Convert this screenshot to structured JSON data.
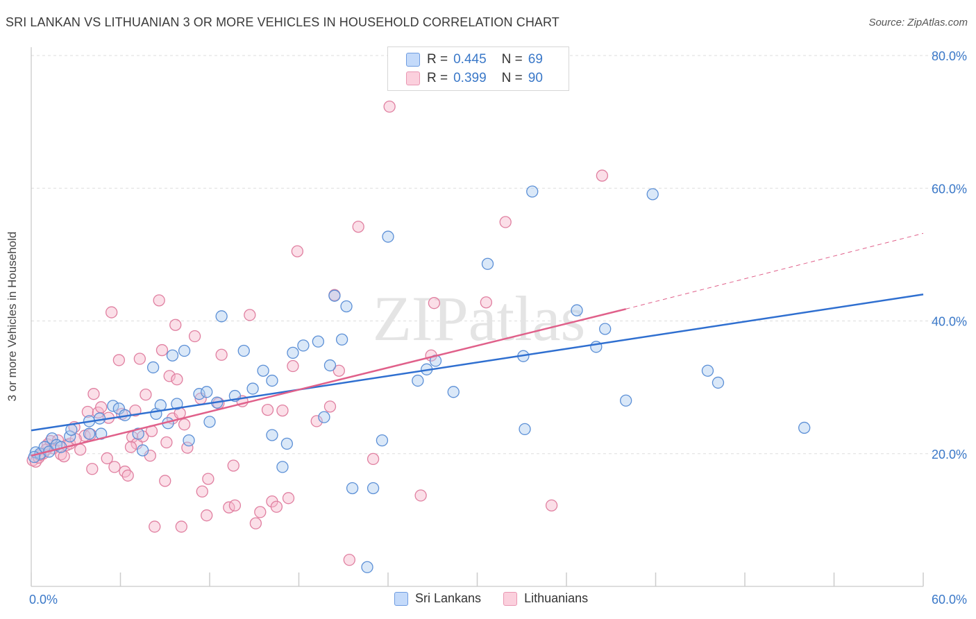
{
  "title": "SRI LANKAN VS LITHUANIAN 3 OR MORE VEHICLES IN HOUSEHOLD CORRELATION CHART",
  "source": "Source: ZipAtlas.com",
  "watermark": "ZIPatlas",
  "legend_top": {
    "rows": [
      {
        "r_label": "R =",
        "r_value": "0.445",
        "n_label": "N =",
        "n_value": "69"
      },
      {
        "r_label": "R =",
        "r_value": "0.399",
        "n_label": "N =",
        "n_value": "90"
      }
    ]
  },
  "legend_bottom": [
    "Sri Lankans",
    "Lithuanians"
  ],
  "colors": {
    "blue_fill": "#aecbf0",
    "blue_stroke": "#5b8fd6",
    "blue_line": "#2f6fd0",
    "pink_fill": "#f6b8cb",
    "pink_stroke": "#e07fa0",
    "pink_line": "#e0608a",
    "axis_label": "#3a78c8",
    "grid": "#dddddd"
  },
  "chart_data": {
    "type": "scatter",
    "title": "SRI LANKAN VS LITHUANIAN 3 OR MORE VEHICLES IN HOUSEHOLD CORRELATION CHART",
    "xlabel": "",
    "ylabel": "3 or more Vehicles in Household",
    "xlim": [
      0,
      60
    ],
    "ylim": [
      0,
      80
    ],
    "x_tick_labels": [
      "0.0%",
      "60.0%"
    ],
    "y_ticks": [
      20,
      40,
      60,
      80
    ],
    "y_tick_labels": [
      "20.0%",
      "40.0%",
      "60.0%",
      "80.0%"
    ],
    "grid": true,
    "legend_position": "top-center",
    "series": [
      {
        "name": "Sri Lankans",
        "R": 0.445,
        "N": 69,
        "trend": {
          "x0": 0,
          "y0": 23.5,
          "x1": 60,
          "y1": 44.0,
          "dashed_extension": false
        },
        "points": [
          [
            0.3,
            20.2
          ],
          [
            0.6,
            20.0
          ],
          [
            0.9,
            21.0
          ],
          [
            1.2,
            20.3
          ],
          [
            1.4,
            22.3
          ],
          [
            1.7,
            21.3
          ],
          [
            2.0,
            21.0
          ],
          [
            2.6,
            22.6
          ],
          [
            2.7,
            23.6
          ],
          [
            3.9,
            23.0
          ],
          [
            3.9,
            24.9
          ],
          [
            4.6,
            25.3
          ],
          [
            4.7,
            23.0
          ],
          [
            5.5,
            27.2
          ],
          [
            5.9,
            26.8
          ],
          [
            6.3,
            25.8
          ],
          [
            7.2,
            23.0
          ],
          [
            7.5,
            20.5
          ],
          [
            8.2,
            33.0
          ],
          [
            8.4,
            26.0
          ],
          [
            8.7,
            27.3
          ],
          [
            9.2,
            24.6
          ],
          [
            9.5,
            34.8
          ],
          [
            9.8,
            27.5
          ],
          [
            10.3,
            35.5
          ],
          [
            10.6,
            22.0
          ],
          [
            11.3,
            29.0
          ],
          [
            11.8,
            29.3
          ],
          [
            12.0,
            24.8
          ],
          [
            12.5,
            27.7
          ],
          [
            12.8,
            40.7
          ],
          [
            13.7,
            28.7
          ],
          [
            14.3,
            35.5
          ],
          [
            14.9,
            29.8
          ],
          [
            15.6,
            32.5
          ],
          [
            16.2,
            31.0
          ],
          [
            16.2,
            22.8
          ],
          [
            16.9,
            18.0
          ],
          [
            17.2,
            21.5
          ],
          [
            17.6,
            35.2
          ],
          [
            18.3,
            36.3
          ],
          [
            19.3,
            36.9
          ],
          [
            19.7,
            25.5
          ],
          [
            20.1,
            33.3
          ],
          [
            20.4,
            43.8
          ],
          [
            20.9,
            37.2
          ],
          [
            21.2,
            42.2
          ],
          [
            21.6,
            14.8
          ],
          [
            22.6,
            2.9
          ],
          [
            23.0,
            14.8
          ],
          [
            23.6,
            22.0
          ],
          [
            24.0,
            52.7
          ],
          [
            26.0,
            31.0
          ],
          [
            26.6,
            32.7
          ],
          [
            27.2,
            34.0
          ],
          [
            28.4,
            29.3
          ],
          [
            30.7,
            48.6
          ],
          [
            33.1,
            34.7
          ],
          [
            33.2,
            23.7
          ],
          [
            33.7,
            59.5
          ],
          [
            36.7,
            41.6
          ],
          [
            38.0,
            36.1
          ],
          [
            38.6,
            38.8
          ],
          [
            40.0,
            28.0
          ],
          [
            41.8,
            59.1
          ],
          [
            45.5,
            32.5
          ],
          [
            46.2,
            30.7
          ],
          [
            52.0,
            23.9
          ],
          [
            0.2,
            19.5
          ]
        ]
      },
      {
        "name": "Lithuanians",
        "R": 0.399,
        "N": 90,
        "trend": {
          "x0": 0,
          "y0": 19.7,
          "x1": 40.0,
          "y1": 41.8,
          "dashed_extension_to": [
            60,
            53.2
          ]
        },
        "points": [
          [
            0.1,
            19.0
          ],
          [
            0.3,
            18.8
          ],
          [
            0.5,
            19.4
          ],
          [
            0.8,
            20.0
          ],
          [
            1.1,
            21.4
          ],
          [
            1.3,
            21.9
          ],
          [
            1.5,
            20.8
          ],
          [
            1.8,
            22.0
          ],
          [
            2.0,
            19.9
          ],
          [
            2.2,
            19.6
          ],
          [
            2.4,
            21.3
          ],
          [
            2.9,
            24.0
          ],
          [
            3.3,
            20.6
          ],
          [
            3.6,
            22.7
          ],
          [
            3.8,
            26.3
          ],
          [
            4.1,
            17.7
          ],
          [
            4.2,
            29.0
          ],
          [
            4.5,
            26.2
          ],
          [
            4.7,
            27.0
          ],
          [
            5.1,
            19.3
          ],
          [
            5.4,
            41.3
          ],
          [
            5.6,
            18.0
          ],
          [
            5.9,
            34.1
          ],
          [
            6.1,
            26.0
          ],
          [
            6.3,
            17.3
          ],
          [
            6.5,
            16.7
          ],
          [
            6.8,
            22.5
          ],
          [
            7.0,
            26.5
          ],
          [
            7.1,
            21.5
          ],
          [
            7.3,
            34.3
          ],
          [
            7.5,
            22.6
          ],
          [
            7.7,
            28.9
          ],
          [
            8.0,
            19.7
          ],
          [
            8.3,
            9.0
          ],
          [
            8.6,
            43.1
          ],
          [
            8.8,
            35.6
          ],
          [
            9.0,
            15.9
          ],
          [
            9.3,
            31.7
          ],
          [
            9.5,
            25.3
          ],
          [
            9.7,
            39.4
          ],
          [
            9.8,
            31.2
          ],
          [
            10.1,
            9.0
          ],
          [
            10.3,
            24.4
          ],
          [
            10.5,
            20.9
          ],
          [
            11.0,
            37.7
          ],
          [
            11.4,
            28.3
          ],
          [
            11.5,
            14.3
          ],
          [
            11.8,
            10.7
          ],
          [
            11.9,
            16.2
          ],
          [
            12.6,
            27.6
          ],
          [
            12.8,
            34.9
          ],
          [
            13.3,
            11.9
          ],
          [
            13.6,
            18.2
          ],
          [
            13.7,
            12.2
          ],
          [
            14.2,
            27.9
          ],
          [
            14.7,
            40.9
          ],
          [
            15.1,
            9.5
          ],
          [
            15.4,
            11.2
          ],
          [
            15.9,
            26.6
          ],
          [
            16.2,
            12.8
          ],
          [
            16.5,
            12.0
          ],
          [
            16.9,
            26.5
          ],
          [
            17.3,
            13.3
          ],
          [
            17.6,
            33.2
          ],
          [
            17.9,
            50.5
          ],
          [
            19.2,
            24.9
          ],
          [
            20.1,
            27.1
          ],
          [
            20.4,
            43.9
          ],
          [
            20.7,
            32.5
          ],
          [
            21.4,
            4.0
          ],
          [
            22.0,
            54.2
          ],
          [
            23.0,
            19.2
          ],
          [
            24.1,
            72.3
          ],
          [
            26.2,
            13.7
          ],
          [
            26.9,
            34.8
          ],
          [
            27.1,
            42.7
          ],
          [
            30.6,
            42.8
          ],
          [
            31.9,
            54.9
          ],
          [
            35.0,
            12.2
          ],
          [
            38.4,
            61.9
          ],
          [
            0.6,
            19.8
          ],
          [
            1.0,
            20.6
          ],
          [
            2.6,
            21.5
          ],
          [
            3.0,
            22.2
          ],
          [
            4.0,
            22.9
          ],
          [
            5.2,
            25.4
          ],
          [
            6.7,
            21.0
          ],
          [
            8.1,
            23.4
          ],
          [
            9.1,
            21.7
          ],
          [
            10.0,
            26.1
          ]
        ]
      }
    ]
  }
}
